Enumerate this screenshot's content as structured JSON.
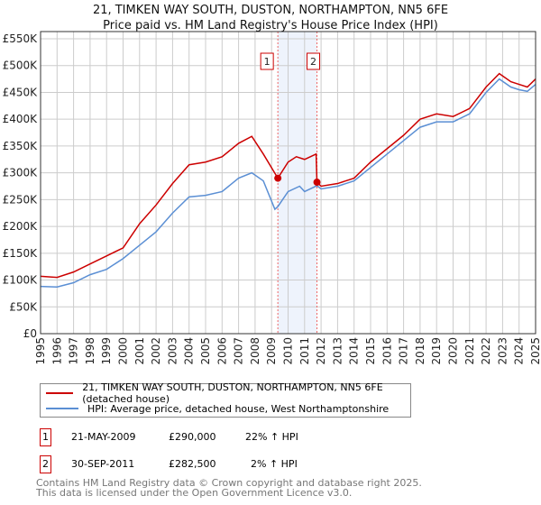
{
  "chart_data": {
    "type": "line",
    "title": "21, TIMKEN WAY SOUTH, DUSTON, NORTHAMPTON, NN5 6FE",
    "subtitle": "Price paid vs. HM Land Registry's House Price Index (HPI)",
    "xlim": [
      1995,
      2025
    ],
    "ylim": [
      0,
      550000
    ],
    "x_ticks": [
      "1995",
      "1996",
      "1997",
      "1998",
      "1999",
      "2000",
      "2001",
      "2002",
      "2003",
      "2004",
      "2005",
      "2006",
      "2007",
      "2008",
      "2009",
      "2010",
      "2011",
      "2012",
      "2013",
      "2014",
      "2015",
      "2016",
      "2017",
      "2018",
      "2019",
      "2020",
      "2021",
      "2022",
      "2023",
      "2024",
      "2025"
    ],
    "y_ticks": [
      {
        "v": 0,
        "label": "£0"
      },
      {
        "v": 50000,
        "label": "£50K"
      },
      {
        "v": 100000,
        "label": "£100K"
      },
      {
        "v": 150000,
        "label": "£150K"
      },
      {
        "v": 200000,
        "label": "£200K"
      },
      {
        "v": 250000,
        "label": "£250K"
      },
      {
        "v": 300000,
        "label": "£300K"
      },
      {
        "v": 350000,
        "label": "£350K"
      },
      {
        "v": 400000,
        "label": "£400K"
      },
      {
        "v": 450000,
        "label": "£450K"
      },
      {
        "v": 500000,
        "label": "£500K"
      },
      {
        "v": 550000,
        "label": "£550K"
      }
    ],
    "grid": true,
    "series": [
      {
        "name": "21, TIMKEN WAY SOUTH, DUSTON, NORTHAMPTON, NN5 6FE (detached house)",
        "color": "#cc0000",
        "x": [
          1995,
          1996,
          1997,
          1998,
          1999,
          2000,
          2001,
          2002,
          2003,
          2004,
          2005,
          2006,
          2007,
          2007.8,
          2008.5,
          2009.38,
          2010,
          2010.5,
          2011,
          2011.7,
          2011.75,
          2012,
          2013,
          2014,
          2015,
          2016,
          2017,
          2018,
          2019,
          2020,
          2021,
          2022,
          2022.8,
          2023.5,
          2024,
          2024.5,
          2025
        ],
        "y": [
          107000,
          105000,
          115000,
          130000,
          145000,
          160000,
          205000,
          240000,
          280000,
          315000,
          320000,
          330000,
          355000,
          368000,
          335000,
          290000,
          320000,
          330000,
          325000,
          335000,
          282500,
          275000,
          280000,
          290000,
          320000,
          345000,
          370000,
          400000,
          410000,
          405000,
          420000,
          460000,
          485000,
          470000,
          465000,
          460000,
          475000
        ]
      },
      {
        "name": "HPI: Average price, detached house, West Northamptonshire",
        "color": "#5b8fd4",
        "x": [
          1995,
          1996,
          1997,
          1998,
          1999,
          2000,
          2001,
          2002,
          2003,
          2004,
          2005,
          2006,
          2007,
          2007.8,
          2008.5,
          2009.2,
          2009.38,
          2010,
          2010.7,
          2011,
          2011.75,
          2012,
          2013,
          2014,
          2015,
          2016,
          2017,
          2018,
          2019,
          2020,
          2021,
          2022,
          2022.8,
          2023.5,
          2024,
          2024.5,
          2025
        ],
        "y": [
          88000,
          87000,
          95000,
          110000,
          120000,
          140000,
          165000,
          190000,
          225000,
          255000,
          258000,
          265000,
          290000,
          300000,
          285000,
          232000,
          237000,
          265000,
          275000,
          265000,
          276000,
          270000,
          275000,
          285000,
          310000,
          335000,
          360000,
          385000,
          395000,
          395000,
          410000,
          450000,
          475000,
          460000,
          455000,
          452000,
          465000
        ]
      }
    ],
    "sales": [
      {
        "id": "1",
        "x": 2009.38,
        "y": 290000
      },
      {
        "id": "2",
        "x": 2011.75,
        "y": 282500
      }
    ],
    "legend_placement": "bottom"
  },
  "table": [
    {
      "id": "1",
      "date": "21-MAY-2009",
      "price": "£290,000",
      "hpi": "22% ↑ HPI"
    },
    {
      "id": "2",
      "date": "30-SEP-2011",
      "price": "£282,500",
      "hpi": "2% ↑ HPI"
    }
  ],
  "footer": [
    "Contains HM Land Registry data © Crown copyright and database right 2025.",
    "This data is licensed under the Open Government Licence v3.0."
  ]
}
